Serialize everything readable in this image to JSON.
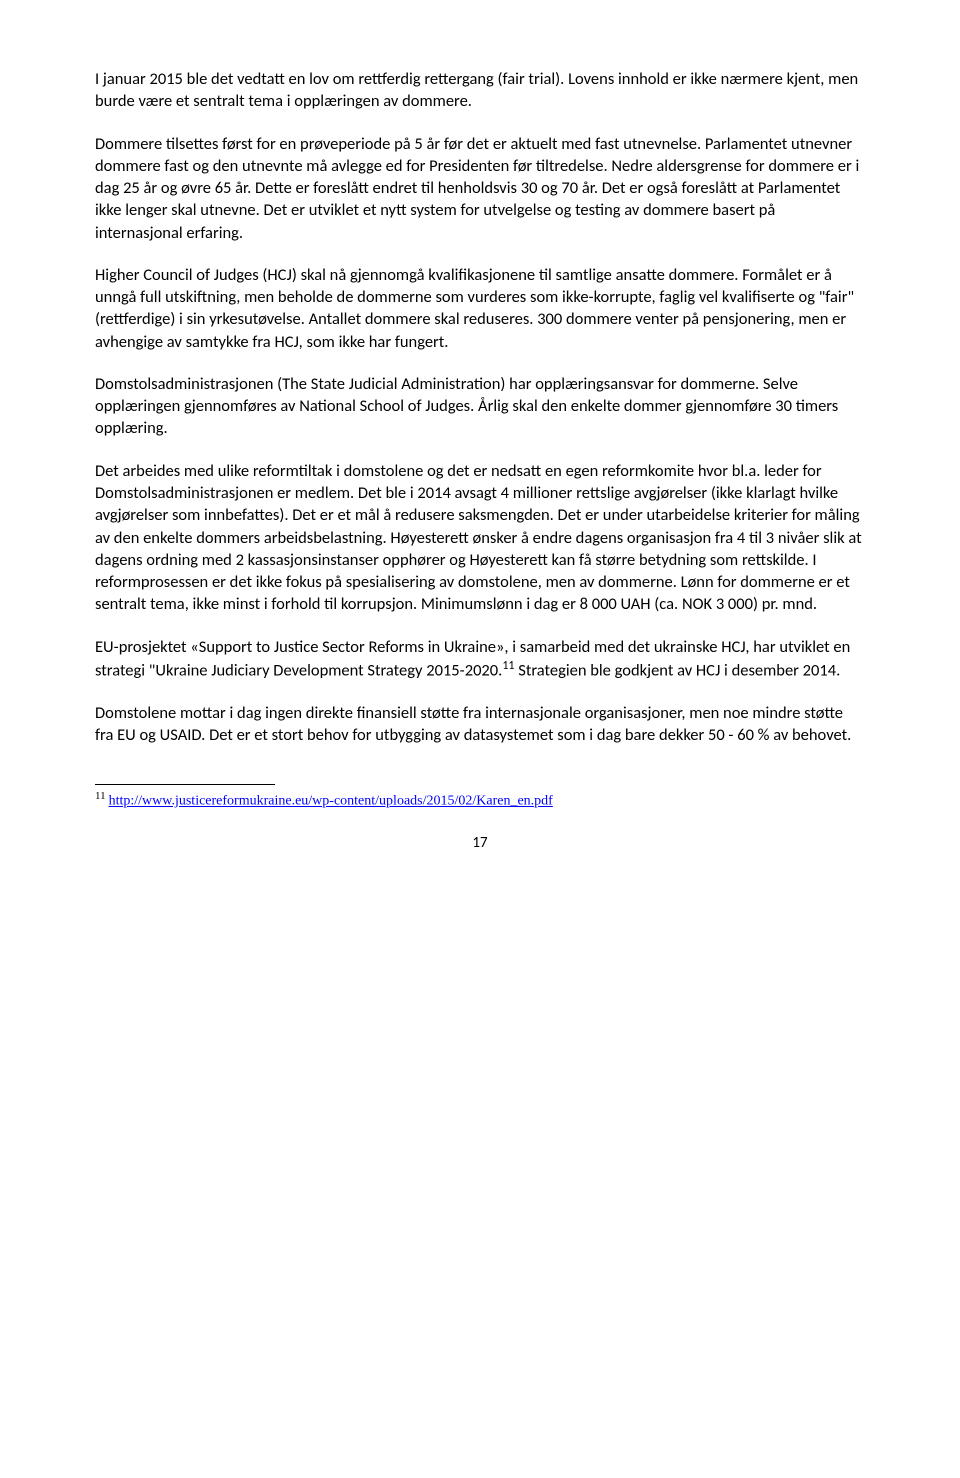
{
  "paragraphs": {
    "p1": "I januar 2015 ble det vedtatt en lov om rettferdig rettergang (fair trial). Lovens innhold er ikke nærmere kjent, men burde være et sentralt tema i opplæringen av dommere.",
    "p2": "Dommere tilsettes først for en prøveperiode på 5 år før det er aktuelt med fast utnevnelse. Parlamentet utnevner dommere fast og den utnevnte må avlegge ed for Presidenten før tiltredelse. Nedre aldersgrense for dommere er i dag 25 år og øvre 65 år. Dette er foreslått endret til henholdsvis 30 og 70 år. Det er også foreslått at Parlamentet ikke lenger skal utnevne. Det er utviklet et nytt system for utvelgelse og testing av dommere basert på internasjonal erfaring.",
    "p3": "Higher Council of Judges (HCJ) skal nå gjennomgå kvalifikasjonene til samtlige ansatte dommere. Formålet er å unngå full utskiftning, men beholde de dommerne som vurderes som ikke-korrupte, faglig vel kvalifiserte og \"fair\" (rettferdige) i sin yrkesutøvelse. Antallet dommere skal reduseres. 300 dommere venter på pensjonering, men er avhengige av samtykke fra HCJ, som ikke har fungert.",
    "p4": "Domstolsadministrasjonen (The State Judicial Administration) har opplæringsansvar for dommerne. Selve opplæringen gjennomføres av National School of Judges. Årlig skal den enkelte dommer gjennomføre 30 timers opplæring.",
    "p5": "Det arbeides med ulike reformtiltak i domstolene og det er nedsatt en egen reformkomite hvor bl.a. leder for Domstolsadministrasjonen er medlem. Det ble i 2014 avsagt 4 millioner rettslige avgjørelser (ikke klarlagt hvilke avgjørelser som innbefattes). Det er et mål å redusere saksmengden. Det er under utarbeidelse kriterier for måling av den enkelte dommers arbeidsbelastning. Høyesterett ønsker å endre dagens organisasjon fra 4 til 3 nivåer slik at dagens ordning med 2 kassasjonsinstanser opphører og Høyesterett kan få større betydning som rettskilde. I reformprosessen er det ikke fokus på spesialisering av domstolene, men av dommerne. Lønn for dommerne er et sentralt tema, ikke minst i forhold til korrupsjon. Minimumslønn i dag er 8 000 UAH (ca. NOK 3 000) pr. mnd.",
    "p6_part1": "EU-prosjektet «Support to Justice Sector Reforms in Ukraine», i samarbeid med det ukrainske HCJ, har utviklet en strategi \"Ukraine Judiciary Development Strategy 2015-2020.",
    "p6_sup": "11",
    "p6_part2": "Strategien ble godkjent av HCJ i desember 2014.",
    "p7": "Domstolene mottar i dag ingen direkte finansiell støtte fra internasjonale organisasjoner, men noe mindre støtte fra EU og USAID. Det er et stort behov for utbygging av datasystemet som i dag bare dekker 50 - 60 % av behovet."
  },
  "footnote": {
    "marker": "11",
    "url_text": "http://www.justicereformukraine.eu/wp-content/uploads/2015/02/Karen_en.pdf",
    "url_href": "http://www.justicereformukraine.eu/wp-content/uploads/2015/02/Karen_en.pdf"
  },
  "page_number": "17"
}
